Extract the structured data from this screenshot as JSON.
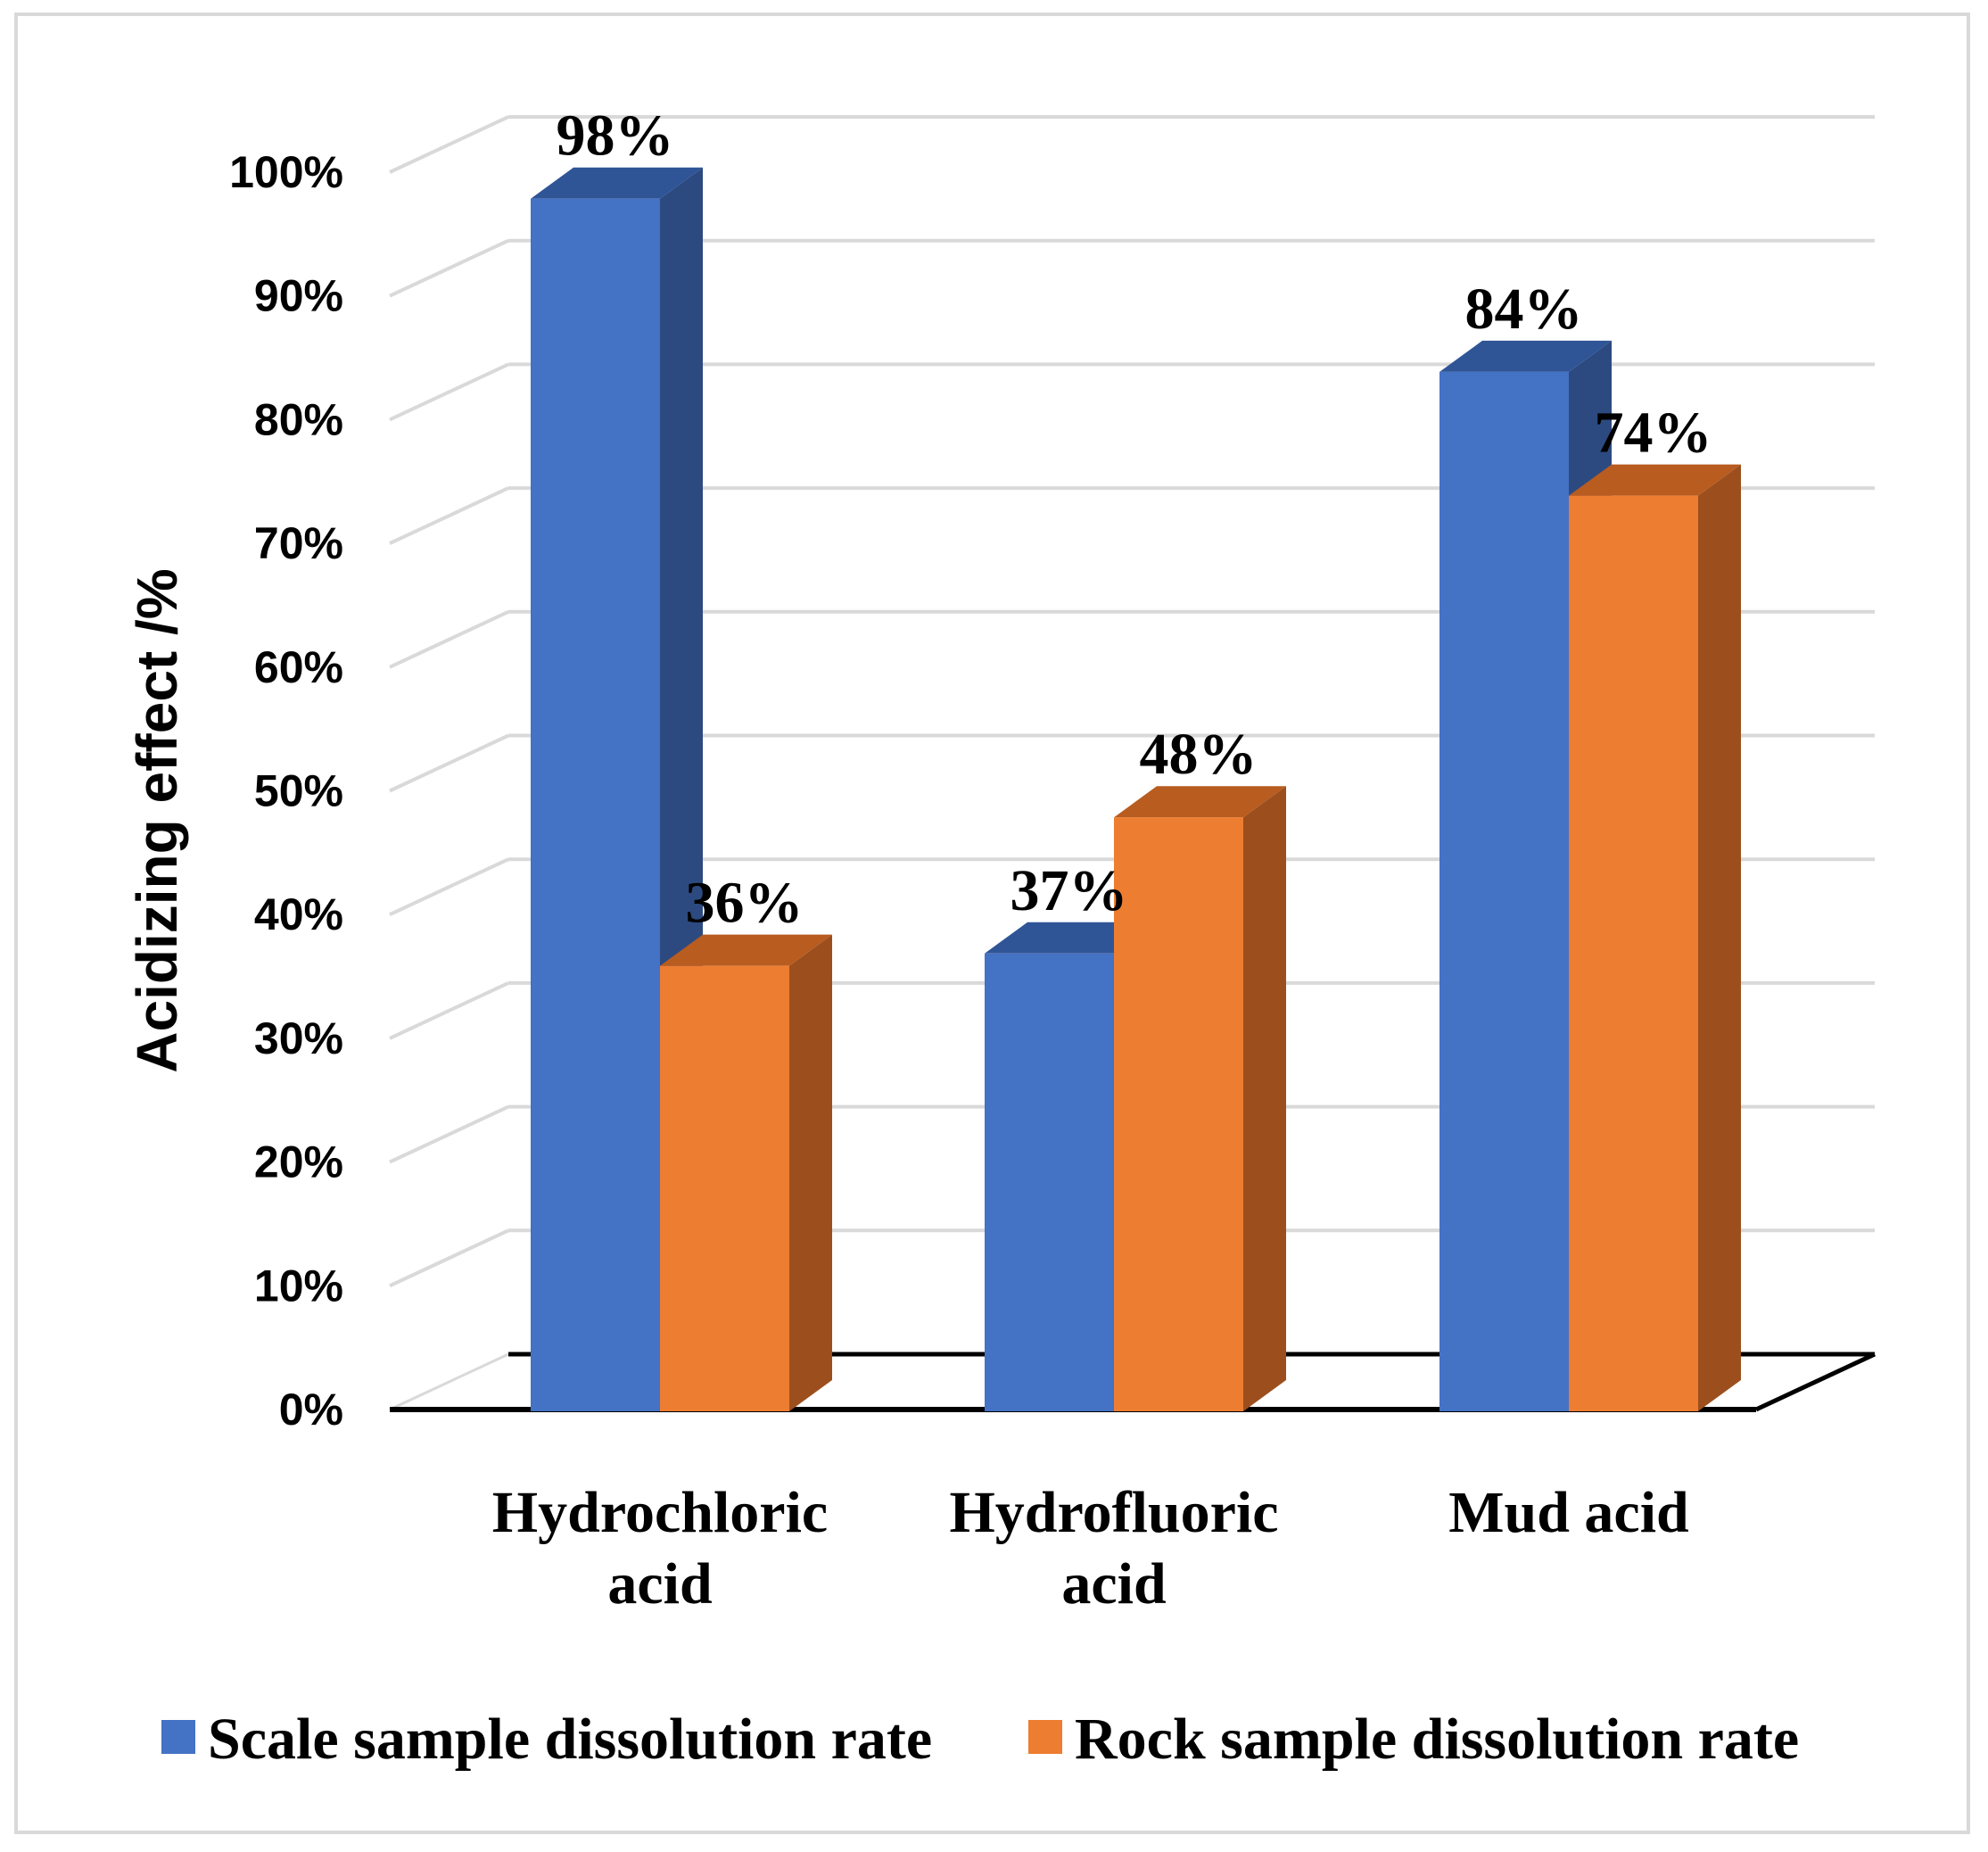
{
  "chart_data": {
    "type": "bar",
    "title": "",
    "xlabel": "",
    "ylabel": "Acidizing effect /%",
    "ylim": [
      0,
      100
    ],
    "ytick_step": 10,
    "ytick_suffix": "%",
    "grid": true,
    "legend_position": "bottom",
    "categories": [
      "Hydrochloric acid",
      "Hydrofluoric acid",
      "Mud acid"
    ],
    "category_lines": [
      [
        "Hydrochloric",
        "acid"
      ],
      [
        "Hydrofluoric",
        "acid"
      ],
      [
        "Mud acid"
      ]
    ],
    "series": [
      {
        "name": "Scale sample dissolution rate",
        "values": [
          98,
          37,
          84
        ],
        "labels": [
          "98%",
          "37%",
          "84%"
        ],
        "color": "#4472c4",
        "side_color": "#2c4a80",
        "top_color": "#2f5597"
      },
      {
        "name": "Rock sample dissolution rate",
        "values": [
          36,
          48,
          74
        ],
        "labels": [
          "36%",
          "48%",
          "74%"
        ],
        "color": "#ed7d31",
        "side_color": "#9c4f1d",
        "top_color": "#b85c20"
      }
    ]
  }
}
